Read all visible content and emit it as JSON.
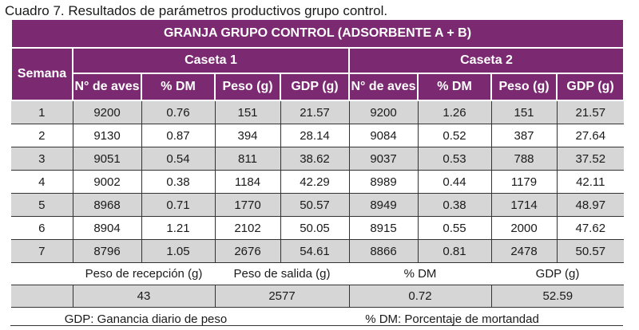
{
  "caption": "Cuadro 7. Resultados de parámetros productivos grupo control.",
  "table": {
    "title": "GRANJA GRUPO CONTROL (ADSORBENTE A + B)",
    "week_header": "Semana",
    "groups": [
      "Caseta 1",
      "Caseta 2"
    ],
    "columns": [
      "N° de aves",
      "% DM",
      "Peso (g)",
      "GDP (g)",
      "N° de aves",
      "% DM",
      "Peso (g)",
      "GDP (g)"
    ],
    "rows": [
      [
        "1",
        "9200",
        "0.76",
        "151",
        "21.57",
        "9200",
        "1.26",
        "151",
        "21.57"
      ],
      [
        "2",
        "9130",
        "0.87",
        "394",
        "28.14",
        "9084",
        "0.52",
        "387",
        "27.64"
      ],
      [
        "3",
        "9051",
        "0.54",
        "811",
        "38.62",
        "9037",
        "0.53",
        "788",
        "37.52"
      ],
      [
        "4",
        "9002",
        "0.38",
        "1184",
        "42.29",
        "8989",
        "0.44",
        "1179",
        "42.11"
      ],
      [
        "5",
        "8968",
        "0.71",
        "1770",
        "50.57",
        "8949",
        "0.38",
        "1714",
        "48.97"
      ],
      [
        "6",
        "8904",
        "1.21",
        "2102",
        "50.05",
        "8915",
        "0.55",
        "2000",
        "47.62"
      ],
      [
        "7",
        "8796",
        "1.05",
        "2676",
        "54.61",
        "8866",
        "0.81",
        "2478",
        "50.57"
      ]
    ],
    "summary_labels": [
      "Peso de recepción (g)",
      "Peso de salida (g)",
      "% DM",
      "GDP (g)"
    ],
    "summary_values": [
      "43",
      "2577",
      "0.72",
      "52.59"
    ],
    "footnotes": [
      "GDP: Ganancia diario de peso",
      "% DM: Porcentaje de mortandad"
    ]
  }
}
